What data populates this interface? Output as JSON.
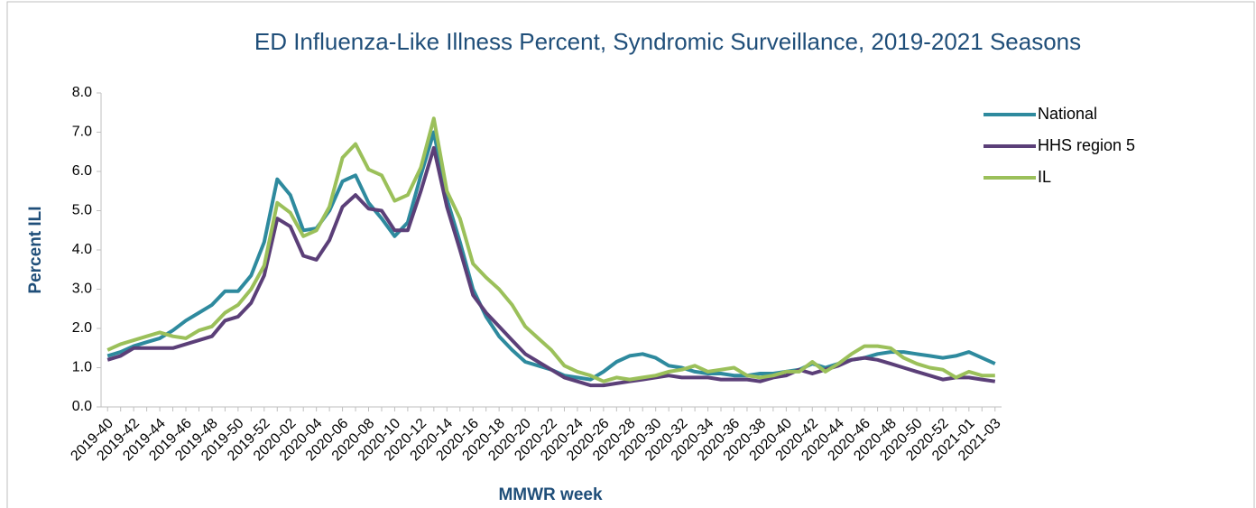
{
  "chart_data": {
    "type": "line",
    "title": "ED Influenza-Like Illness Percent, Syndromic Surveillance, 2019-2021 Seasons",
    "x_label": "MMWR week",
    "y_label": "Percent ILI",
    "categories": [
      "2019-40",
      null,
      "2019-42",
      null,
      "2019-44",
      null,
      "2019-46",
      null,
      "2019-48",
      null,
      "2019-50",
      null,
      "2019-52",
      null,
      "2020-02",
      null,
      "2020-04",
      null,
      "2020-06",
      null,
      "2020-08",
      null,
      "2020-10",
      null,
      "2020-12",
      null,
      "2020-14",
      null,
      "2020-16",
      null,
      "2020-18",
      null,
      "2020-20",
      null,
      "2020-22",
      null,
      "2020-24",
      null,
      "2020-26",
      null,
      "2020-28",
      null,
      "2020-30",
      null,
      "2020-32",
      null,
      "2020-34",
      null,
      "2020-36",
      null,
      "2020-38",
      null,
      "2020-40",
      null,
      "2020-42",
      null,
      "2020-44",
      null,
      "2020-46",
      null,
      "2020-48",
      null,
      "2020-50",
      null,
      "2020-52",
      null,
      "2021-01",
      null,
      "2021-03"
    ],
    "series": [
      {
        "name": "National",
        "color": "#2e8a9e",
        "values": [
          1.3,
          1.4,
          1.55,
          1.65,
          1.75,
          1.95,
          2.2,
          2.4,
          2.6,
          2.95,
          2.95,
          3.35,
          4.2,
          5.8,
          5.4,
          4.5,
          4.55,
          5.0,
          5.75,
          5.9,
          5.2,
          4.8,
          4.35,
          4.7,
          5.9,
          7.0,
          5.3,
          4.2,
          3.0,
          2.3,
          1.8,
          1.45,
          1.15,
          1.05,
          0.95,
          0.8,
          0.75,
          0.7,
          0.9,
          1.15,
          1.3,
          1.35,
          1.25,
          1.05,
          1.0,
          0.9,
          0.85,
          0.85,
          0.8,
          0.8,
          0.85,
          0.85,
          0.9,
          0.95,
          1.1,
          1.0,
          1.1,
          1.2,
          1.25,
          1.35,
          1.4,
          1.4,
          1.35,
          1.3,
          1.25,
          1.3,
          1.4,
          1.25,
          1.1
        ]
      },
      {
        "name": "HHS region 5",
        "color": "#5b3f78",
        "values": [
          1.2,
          1.3,
          1.5,
          1.5,
          1.5,
          1.5,
          1.6,
          1.7,
          1.8,
          2.2,
          2.3,
          2.65,
          3.35,
          4.8,
          4.6,
          3.85,
          3.75,
          4.25,
          5.1,
          5.4,
          5.05,
          5.0,
          4.5,
          4.5,
          5.5,
          6.6,
          5.1,
          4.0,
          2.85,
          2.4,
          2.05,
          1.7,
          1.35,
          1.15,
          0.95,
          0.75,
          0.65,
          0.55,
          0.55,
          0.6,
          0.65,
          0.7,
          0.75,
          0.8,
          0.75,
          0.75,
          0.75,
          0.7,
          0.7,
          0.7,
          0.65,
          0.75,
          0.8,
          0.95,
          0.85,
          0.95,
          1.05,
          1.2,
          1.25,
          1.2,
          1.1,
          1.0,
          0.9,
          0.8,
          0.7,
          0.75,
          0.75,
          0.7,
          0.65
        ]
      },
      {
        "name": "IL",
        "color": "#9bc05a",
        "values": [
          1.45,
          1.6,
          1.7,
          1.8,
          1.9,
          1.8,
          1.75,
          1.95,
          2.05,
          2.4,
          2.6,
          3.0,
          3.6,
          5.2,
          4.95,
          4.35,
          4.5,
          5.1,
          6.35,
          6.7,
          6.05,
          5.9,
          5.25,
          5.4,
          6.1,
          7.35,
          5.5,
          4.8,
          3.65,
          3.3,
          3.0,
          2.6,
          2.05,
          1.75,
          1.45,
          1.05,
          0.9,
          0.8,
          0.65,
          0.75,
          0.7,
          0.75,
          0.8,
          0.9,
          0.95,
          1.05,
          0.9,
          0.95,
          1.0,
          0.8,
          0.75,
          0.8,
          0.9,
          0.9,
          1.15,
          0.9,
          1.1,
          1.35,
          1.55,
          1.55,
          1.5,
          1.25,
          1.1,
          1.0,
          0.95,
          0.75,
          0.9,
          0.8,
          0.8
        ]
      }
    ],
    "ylim": [
      0,
      8
    ],
    "yticks": [
      {
        "value": 0,
        "label": "0.0"
      },
      {
        "value": 1,
        "label": "1.0"
      },
      {
        "value": 2,
        "label": "2.0"
      },
      {
        "value": 3,
        "label": "3.0"
      },
      {
        "value": 4,
        "label": "4.0"
      },
      {
        "value": 5,
        "label": "5.0"
      },
      {
        "value": 6,
        "label": "6.0"
      },
      {
        "value": 7,
        "label": "7.0"
      },
      {
        "value": 8,
        "label": "8.0"
      }
    ],
    "grid": false,
    "legend": "upper right"
  }
}
